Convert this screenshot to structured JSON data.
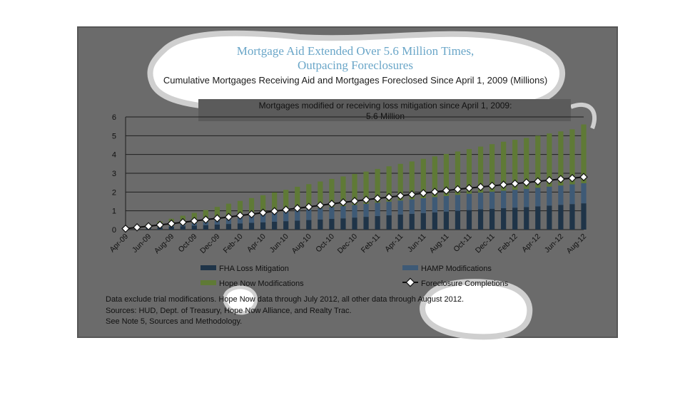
{
  "chart_data": {
    "type": "bar",
    "title": "Mortgage Aid Extended Over 5.6 Million Times, Outpacing Foreclosures",
    "title_lines": [
      "Mortgage Aid Extended Over 5.6 Million Times,",
      "Outpacing Foreclosures"
    ],
    "subtitle": "Cumulative Mortgages Receiving Aid and Mortgages Foreclosed Since April 1, 2009 (Millions)",
    "callout_lines": [
      "Mortgages modified or receiving loss mitigation since April 1, 2009:",
      "5.6 Million"
    ],
    "ylim": [
      0,
      6
    ],
    "yticks": [
      "0",
      "1",
      "2",
      "3",
      "4",
      "5",
      "6"
    ],
    "grid": true,
    "legend_position": "bottom",
    "categories": [
      "Apr-09",
      "May-09",
      "Jun-09",
      "Jul-09",
      "Aug-09",
      "Sep-09",
      "Oct-09",
      "Nov-09",
      "Dec-09",
      "Jan-10",
      "Feb-10",
      "Mar-10",
      "Apr-10",
      "May-10",
      "Jun-10",
      "Jul-10",
      "Aug-10",
      "Sep-10",
      "Oct-10",
      "Nov-10",
      "Dec-10",
      "Jan-11",
      "Feb-11",
      "Mar-11",
      "Apr-11",
      "May-11",
      "Jun-11",
      "Jul-11",
      "Aug-11",
      "Sep-11",
      "Oct-11",
      "Nov-11",
      "Dec-11",
      "Jan-12",
      "Feb-12",
      "Mar-12",
      "Apr-12",
      "May-12",
      "Jun-12",
      "Jul-12",
      "Aug-12"
    ],
    "tick_labels": [
      "Apr-09",
      "Jun-09",
      "Aug-09",
      "Oct-09",
      "Dec-09",
      "Feb-10",
      "Apr-10",
      "Jun-10",
      "Aug-10",
      "Oct-10",
      "Dec-10",
      "Feb-11",
      "Apr-11",
      "Jun-11",
      "Aug-11",
      "Oct-11",
      "Dec-11",
      "Feb-12",
      "Apr-12",
      "Jun-12",
      "Aug-12"
    ],
    "series": [
      {
        "name": "FHA Loss Mitigation",
        "kind": "bar",
        "color": "#1f3448",
        "values": [
          0.03,
          0.06,
          0.09,
          0.12,
          0.15,
          0.18,
          0.21,
          0.24,
          0.27,
          0.3,
          0.33,
          0.36,
          0.39,
          0.42,
          0.45,
          0.48,
          0.51,
          0.54,
          0.57,
          0.6,
          0.64,
          0.68,
          0.72,
          0.76,
          0.8,
          0.84,
          0.88,
          0.92,
          0.96,
          1.0,
          1.04,
          1.08,
          1.11,
          1.14,
          1.17,
          1.2,
          1.24,
          1.28,
          1.32,
          1.36,
          1.4
        ]
      },
      {
        "name": "HAMP Modifications",
        "kind": "bar",
        "color": "#3e5a76",
        "values": [
          0.0,
          0.0,
          0.01,
          0.02,
          0.05,
          0.09,
          0.13,
          0.17,
          0.22,
          0.28,
          0.32,
          0.37,
          0.42,
          0.47,
          0.51,
          0.55,
          0.58,
          0.61,
          0.63,
          0.65,
          0.67,
          0.69,
          0.71,
          0.73,
          0.75,
          0.77,
          0.79,
          0.81,
          0.83,
          0.85,
          0.87,
          0.89,
          0.91,
          0.93,
          0.95,
          0.97,
          0.99,
          1.01,
          1.03,
          1.05,
          1.07
        ]
      },
      {
        "name": "Hope Now Modifications",
        "kind": "bar",
        "color": "#5f7a36",
        "values": [
          0.02,
          0.1,
          0.2,
          0.3,
          0.38,
          0.47,
          0.55,
          0.63,
          0.72,
          0.8,
          0.88,
          0.95,
          1.02,
          1.09,
          1.16,
          1.25,
          1.33,
          1.41,
          1.5,
          1.58,
          1.65,
          1.72,
          1.8,
          1.88,
          1.95,
          2.02,
          2.1,
          2.17,
          2.24,
          2.31,
          2.38,
          2.45,
          2.53,
          2.61,
          2.66,
          2.71,
          2.77,
          2.83,
          2.88,
          2.93,
          3.13
        ]
      },
      {
        "name": "Foreclosure Completions",
        "kind": "line",
        "color": "#111111",
        "values": [
          0.05,
          0.12,
          0.18,
          0.25,
          0.32,
          0.39,
          0.46,
          0.53,
          0.6,
          0.67,
          0.75,
          0.82,
          0.9,
          0.98,
          1.06,
          1.14,
          1.21,
          1.29,
          1.37,
          1.45,
          1.52,
          1.59,
          1.66,
          1.73,
          1.8,
          1.87,
          1.94,
          2.01,
          2.08,
          2.15,
          2.21,
          2.27,
          2.33,
          2.39,
          2.45,
          2.51,
          2.57,
          2.63,
          2.69,
          2.74,
          2.8
        ]
      }
    ]
  },
  "legend_items": [
    "FHA Loss Mitigation",
    "HAMP Modifications",
    "Hope Now Modifications",
    "Foreclosure Completions"
  ],
  "footnotes": [
    "Data exclude trial modifications. Hope Now data through July 2012, all other data through August 2012.",
    "Sources:  HUD, Dept. of Treasury, Hope Now Alliance, and Realty Trac.",
    "See Note 5, Sources and Methodology."
  ],
  "colors": {
    "panel": "#6b6b6b",
    "title": "#6aa6c8",
    "blob": "#ffffff"
  }
}
